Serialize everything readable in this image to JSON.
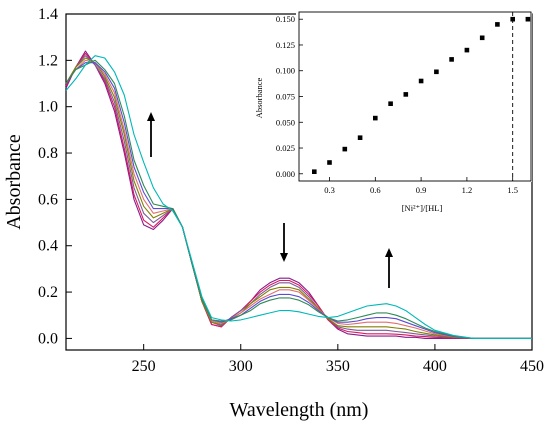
{
  "chart_data": [
    {
      "type": "line",
      "xlabel": "Wavelength (nm)",
      "ylabel": "Absorbance",
      "xlim": [
        210,
        450
      ],
      "ylim": [
        -0.05,
        1.4
      ],
      "xticks": [
        250,
        300,
        350,
        400,
        450
      ],
      "yticks": [
        0.0,
        0.2,
        0.4,
        0.6,
        0.8,
        1.0,
        1.2,
        1.4
      ],
      "grid": false,
      "legend": "none",
      "x": [
        210,
        215,
        220,
        225,
        230,
        235,
        240,
        245,
        250,
        255,
        260,
        265,
        270,
        275,
        280,
        285,
        290,
        295,
        300,
        305,
        310,
        315,
        320,
        325,
        330,
        335,
        340,
        345,
        350,
        355,
        360,
        365,
        370,
        375,
        380,
        385,
        390,
        395,
        400,
        410,
        420,
        430,
        440,
        450
      ],
      "series": [
        {
          "color": "#8b1a8b",
          "values": [
            1.08,
            1.17,
            1.24,
            1.18,
            1.1,
            0.98,
            0.8,
            0.6,
            0.49,
            0.47,
            0.51,
            0.56,
            0.48,
            0.32,
            0.16,
            0.06,
            0.05,
            0.09,
            0.12,
            0.16,
            0.21,
            0.24,
            0.26,
            0.26,
            0.24,
            0.2,
            0.14,
            0.08,
            0.04,
            0.02,
            0.015,
            0.01,
            0.01,
            0.01,
            0.01,
            0.005,
            0.005,
            0.0,
            0.0,
            0.0,
            0.0,
            0.0,
            0.0,
            0.0
          ]
        },
        {
          "color": "#d81b60",
          "values": [
            1.09,
            1.17,
            1.23,
            1.18,
            1.11,
            1.0,
            0.82,
            0.62,
            0.51,
            0.48,
            0.52,
            0.56,
            0.48,
            0.32,
            0.16,
            0.06,
            0.05,
            0.09,
            0.12,
            0.16,
            0.2,
            0.23,
            0.25,
            0.25,
            0.23,
            0.19,
            0.14,
            0.08,
            0.045,
            0.03,
            0.025,
            0.02,
            0.02,
            0.02,
            0.018,
            0.015,
            0.01,
            0.008,
            0.005,
            0.002,
            0.0,
            0.0,
            0.0,
            0.0
          ]
        },
        {
          "color": "#7a5c99",
          "values": [
            1.1,
            1.17,
            1.22,
            1.18,
            1.12,
            1.02,
            0.85,
            0.65,
            0.54,
            0.5,
            0.53,
            0.56,
            0.48,
            0.32,
            0.16,
            0.07,
            0.055,
            0.09,
            0.12,
            0.15,
            0.19,
            0.22,
            0.24,
            0.24,
            0.22,
            0.18,
            0.13,
            0.085,
            0.05,
            0.04,
            0.035,
            0.035,
            0.035,
            0.035,
            0.03,
            0.025,
            0.02,
            0.015,
            0.01,
            0.004,
            0.0,
            0.0,
            0.0,
            0.0
          ]
        },
        {
          "color": "#808000",
          "values": [
            1.1,
            1.17,
            1.21,
            1.19,
            1.13,
            1.04,
            0.88,
            0.68,
            0.57,
            0.52,
            0.54,
            0.56,
            0.48,
            0.32,
            0.16,
            0.07,
            0.06,
            0.085,
            0.11,
            0.15,
            0.18,
            0.21,
            0.22,
            0.22,
            0.21,
            0.17,
            0.13,
            0.085,
            0.055,
            0.05,
            0.05,
            0.05,
            0.05,
            0.05,
            0.045,
            0.04,
            0.03,
            0.022,
            0.015,
            0.005,
            0.0,
            0.0,
            0.0,
            0.0
          ]
        },
        {
          "color": "#e07070",
          "values": [
            1.1,
            1.16,
            1.2,
            1.19,
            1.14,
            1.06,
            0.9,
            0.71,
            0.6,
            0.54,
            0.55,
            0.56,
            0.48,
            0.32,
            0.17,
            0.075,
            0.065,
            0.085,
            0.11,
            0.14,
            0.17,
            0.19,
            0.21,
            0.21,
            0.2,
            0.165,
            0.125,
            0.09,
            0.065,
            0.06,
            0.065,
            0.07,
            0.07,
            0.07,
            0.065,
            0.055,
            0.045,
            0.032,
            0.02,
            0.007,
            0.0,
            0.0,
            0.0,
            0.0
          ]
        },
        {
          "color": "#5a4bd1",
          "values": [
            1.1,
            1.16,
            1.19,
            1.19,
            1.15,
            1.08,
            0.93,
            0.74,
            0.63,
            0.56,
            0.56,
            0.56,
            0.48,
            0.32,
            0.17,
            0.08,
            0.07,
            0.085,
            0.1,
            0.13,
            0.16,
            0.18,
            0.19,
            0.19,
            0.18,
            0.155,
            0.12,
            0.09,
            0.07,
            0.07,
            0.075,
            0.085,
            0.09,
            0.09,
            0.085,
            0.07,
            0.055,
            0.04,
            0.025,
            0.008,
            0.0,
            0.0,
            0.0,
            0.0
          ]
        },
        {
          "color": "#2e8b57",
          "values": [
            1.1,
            1.16,
            1.18,
            1.2,
            1.16,
            1.1,
            0.96,
            0.77,
            0.66,
            0.58,
            0.57,
            0.56,
            0.48,
            0.32,
            0.17,
            0.08,
            0.075,
            0.08,
            0.1,
            0.12,
            0.15,
            0.165,
            0.175,
            0.175,
            0.165,
            0.145,
            0.115,
            0.09,
            0.075,
            0.08,
            0.09,
            0.1,
            0.11,
            0.11,
            0.1,
            0.085,
            0.065,
            0.045,
            0.03,
            0.01,
            0.0,
            0.0,
            0.0,
            0.0
          ]
        },
        {
          "color": "#00b8b8",
          "values": [
            1.07,
            1.12,
            1.18,
            1.22,
            1.21,
            1.15,
            1.05,
            0.88,
            0.76,
            0.65,
            0.58,
            0.55,
            0.48,
            0.33,
            0.18,
            0.09,
            0.08,
            0.075,
            0.08,
            0.09,
            0.1,
            0.11,
            0.12,
            0.12,
            0.115,
            0.105,
            0.095,
            0.09,
            0.095,
            0.11,
            0.125,
            0.14,
            0.145,
            0.15,
            0.14,
            0.12,
            0.09,
            0.06,
            0.035,
            0.012,
            0.0,
            0.0,
            0.0,
            0.0
          ]
        }
      ],
      "annotations": [
        "arrow-up-near-250",
        "arrow-down-near-322",
        "arrow-up-near-375"
      ]
    },
    {
      "type": "scatter",
      "xlabel": "[Ni²⁺]/[HL]",
      "ylabel": "Absorbance",
      "xlim": [
        0.1,
        1.62
      ],
      "ylim": [
        -0.007,
        0.157
      ],
      "xticks": [
        0.3,
        0.6,
        0.9,
        1.2,
        1.5
      ],
      "xtick_labels": [
        "0.3",
        "0.6",
        "0.9",
        "1.2",
        "1.5"
      ],
      "yticks": [
        0.0,
        0.025,
        0.05,
        0.075,
        0.1,
        0.125,
        0.15
      ],
      "ytick_labels": [
        "0.000",
        "0.025",
        "0.050",
        "0.075",
        "0.100",
        "0.125",
        "0.150"
      ],
      "grid": false,
      "legend": "none",
      "x": [
        0.2,
        0.3,
        0.4,
        0.5,
        0.6,
        0.7,
        0.8,
        0.9,
        1.0,
        1.1,
        1.2,
        1.3,
        1.4,
        1.5,
        1.6
      ],
      "values": [
        0.002,
        0.011,
        0.024,
        0.035,
        0.054,
        0.068,
        0.077,
        0.09,
        0.099,
        0.111,
        0.12,
        0.132,
        0.145,
        0.15,
        0.15
      ],
      "vline_x": 1.5
    }
  ]
}
